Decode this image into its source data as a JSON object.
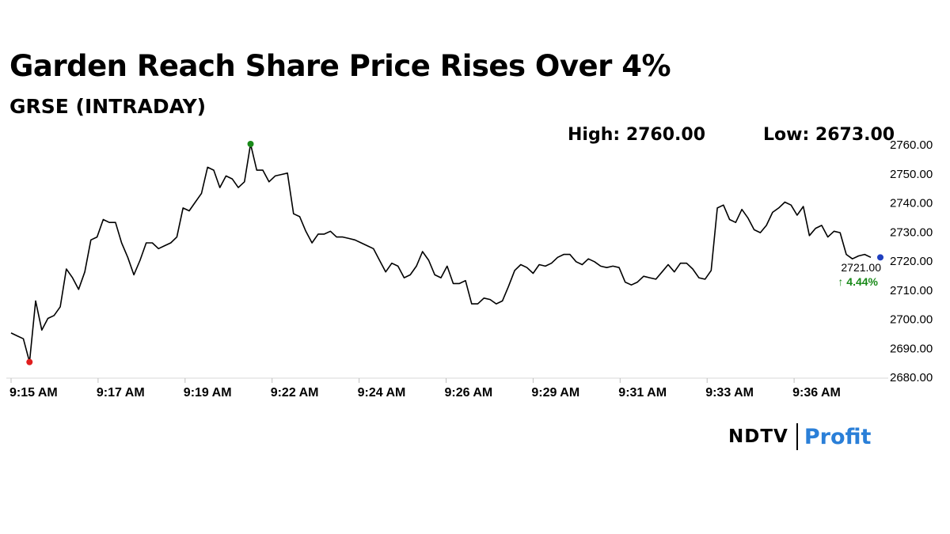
{
  "header": {
    "title": "Garden Reach Share Price Rises Over 4%",
    "subtitle": "GRSE (INTRADAY)",
    "high_label": "High: 2760.00",
    "low_label": "Low: 2673.00"
  },
  "colors": {
    "line": "#000000",
    "high_marker": "#1a8a1a",
    "low_marker": "#e01e1e",
    "last_marker": "#1f3fbf",
    "change_text": "#1a8a1a",
    "gridline": "#d9d9d9"
  },
  "logo": {
    "part1": "NDTV",
    "part2": "Profit"
  },
  "chart_data": {
    "type": "line",
    "title": "Garden Reach Share Price Rises Over 4%",
    "subtitle": "GRSE (INTRADAY)",
    "xlabel": "",
    "ylabel": "",
    "ylim": [
      2680,
      2760
    ],
    "y_ticks": [
      "2680.00",
      "2690.00",
      "2700.00",
      "2710.00",
      "2720.00",
      "2730.00",
      "2740.00",
      "2750.00",
      "2760.00"
    ],
    "x_ticks": [
      "9:15 AM",
      "9:17 AM",
      "9:19 AM",
      "9:22 AM",
      "9:24 AM",
      "9:26 AM",
      "9:29 AM",
      "9:31 AM",
      "9:33 AM",
      "9:36 AM"
    ],
    "y_axis_position": "right",
    "grid": false,
    "legend": "none",
    "values": [
      2695,
      2694,
      2693,
      2685,
      2706,
      2696,
      2700,
      2701,
      2704,
      2717,
      2714,
      2710,
      2716,
      2727,
      2728,
      2734,
      2733,
      2733,
      2726,
      2721,
      2715,
      2720,
      2726,
      2726,
      2724,
      2725,
      2726,
      2728,
      2738,
      2737,
      2740,
      2743,
      2752,
      2751,
      2745,
      2749,
      2748,
      2745,
      2747,
      2760,
      2751,
      2751,
      2747,
      2749,
      2749.5,
      2750,
      2736,
      2735,
      2730,
      2726,
      2729,
      2729,
      2730,
      2728,
      2728,
      2727.5,
      2727,
      2726,
      2725,
      2724,
      2720,
      2716,
      2719,
      2718,
      2714,
      2715,
      2718,
      2723,
      2720,
      2715,
      2714,
      2718,
      2712,
      2712,
      2713,
      2705,
      2705,
      2707,
      2706.5,
      2705,
      2706,
      2711,
      2716.5,
      2718.5,
      2717.5,
      2715.5,
      2718.5,
      2718,
      2719,
      2721,
      2722,
      2722,
      2719.5,
      2718.5,
      2720.5,
      2719.5,
      2718,
      2717.5,
      2718,
      2717.5,
      2712.5,
      2711.5,
      2712.5,
      2714.5,
      2714,
      2713.5,
      2716,
      2718.5,
      2716,
      2719,
      2719,
      2717,
      2714,
      2713.5,
      2716.5,
      2738,
      2739,
      2734,
      2733,
      2737.5,
      2734.5,
      2730.5,
      2729.5,
      2732,
      2736.5,
      2738,
      2740,
      2739,
      2735.5,
      2738.5,
      2728.5,
      2731,
      2732,
      2728,
      2730,
      2729.5,
      2722,
      2720.5,
      2721.5,
      2722,
      2721
    ],
    "high": {
      "value": 2760,
      "label": "High: 2760.00"
    },
    "low": {
      "value": 2673,
      "label": "Low: 2673.00"
    },
    "last": {
      "value": "2721.00",
      "change": "4.44%"
    }
  }
}
